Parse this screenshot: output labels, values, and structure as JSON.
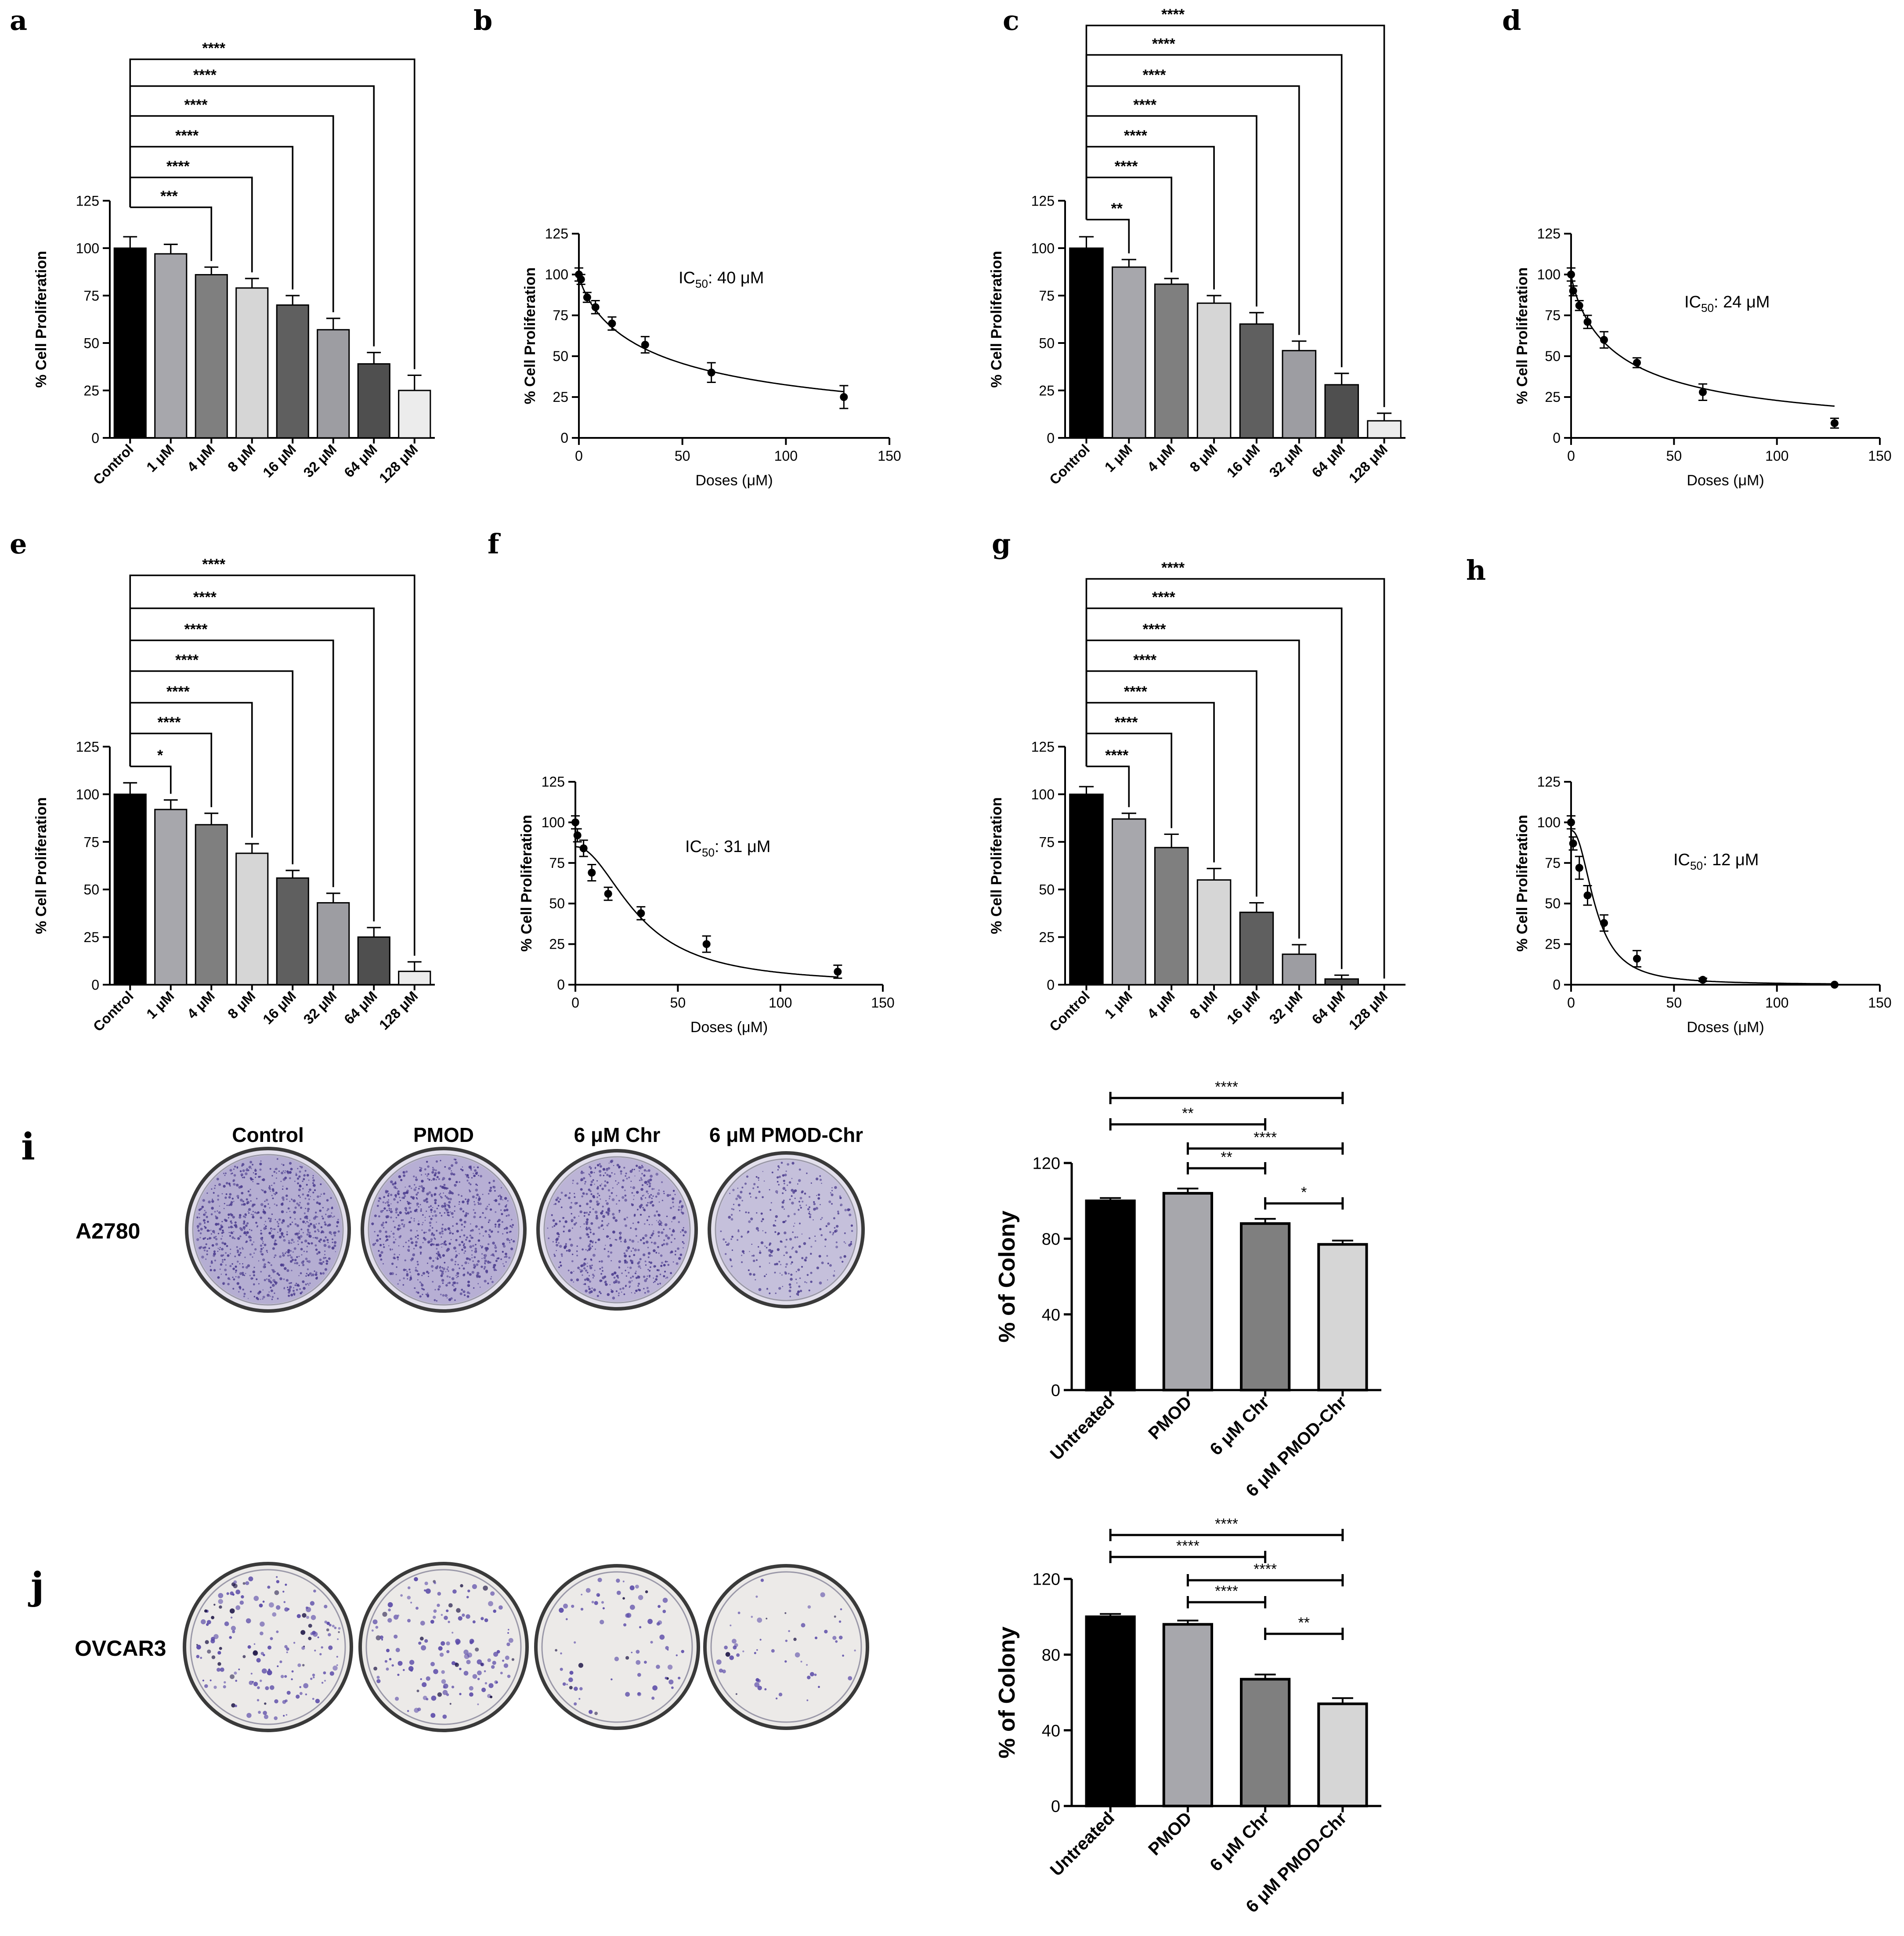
{
  "panel_labels": [
    "a",
    "b",
    "c",
    "d",
    "e",
    "f",
    "g",
    "h",
    "i",
    "j"
  ],
  "colors": {
    "control": "#000000",
    "bar_1": "#a7a7ac",
    "bar_4": "#7f7f7f",
    "bar_8": "#d6d6d6",
    "bar_16": "#5f5f5f",
    "bar_32": "#9d9da2",
    "bar_64": "#4f4f4f",
    "bar_128": "#ececec",
    "dish_stain": "#6a5aa8",
    "dish_rim": "#3a3a3a",
    "dish_fill": "#d9d6e4"
  },
  "chart_data": [
    {
      "panel": "a",
      "type": "bar",
      "ylabel": "% Cell Proliferation",
      "ylim": [
        0,
        125
      ],
      "yticks": [
        "0",
        "25",
        "50",
        "75",
        "100",
        "125"
      ],
      "categories": [
        "Control",
        "1 μM",
        "4 μM",
        "8 μM",
        "16 μM",
        "32 μM",
        "64 μM",
        "128 μM"
      ],
      "values": [
        100,
        97,
        86,
        79,
        70,
        57,
        39,
        25
      ],
      "errors": [
        6,
        5,
        4,
        5,
        5,
        6,
        6,
        8
      ],
      "annotations": [
        {
          "from": 0,
          "to": 2,
          "label": "***"
        },
        {
          "from": 0,
          "to": 3,
          "label": "****"
        },
        {
          "from": 0,
          "to": 4,
          "label": "****"
        },
        {
          "from": 0,
          "to": 5,
          "label": "****"
        },
        {
          "from": 0,
          "to": 6,
          "label": "****"
        },
        {
          "from": 0,
          "to": 7,
          "label": "****"
        }
      ]
    },
    {
      "panel": "b",
      "type": "scatter",
      "xlabel": "Doses (μM)",
      "ylabel": "% Cell Proliferation",
      "xlim": [
        0,
        150
      ],
      "ylim": [
        0,
        125
      ],
      "xticks": [
        "0",
        "50",
        "100",
        "150"
      ],
      "yticks": [
        "0",
        "25",
        "50",
        "75",
        "100",
        "125"
      ],
      "x": [
        0,
        1,
        4,
        8,
        16,
        32,
        64,
        128
      ],
      "y": [
        100,
        97,
        86,
        80,
        70,
        57,
        40,
        25
      ],
      "errors": [
        4,
        3,
        3,
        4,
        4,
        5,
        6,
        7
      ],
      "ic50_label": "IC",
      "ic50_sub": "50",
      "ic50_value": ": 40 μM",
      "fit": {
        "model": "hill",
        "ic50": 40,
        "hill": 0.8,
        "top": 100,
        "bottom": 0
      }
    },
    {
      "panel": "c",
      "type": "bar",
      "ylabel": "% Cell Proliferation",
      "ylim": [
        0,
        125
      ],
      "yticks": [
        "0",
        "25",
        "50",
        "75",
        "100",
        "125"
      ],
      "categories": [
        "Control",
        "1 μM",
        "4 μM",
        "8 μM",
        "16 μM",
        "32 μM",
        "64 μM",
        "128 μM"
      ],
      "values": [
        100,
        90,
        81,
        71,
        60,
        46,
        28,
        9
      ],
      "errors": [
        6,
        4,
        3,
        4,
        6,
        5,
        6,
        4
      ],
      "annotations": [
        {
          "from": 0,
          "to": 1,
          "label": "**"
        },
        {
          "from": 0,
          "to": 2,
          "label": "****"
        },
        {
          "from": 0,
          "to": 3,
          "label": "****"
        },
        {
          "from": 0,
          "to": 4,
          "label": "****"
        },
        {
          "from": 0,
          "to": 5,
          "label": "****"
        },
        {
          "from": 0,
          "to": 6,
          "label": "****"
        },
        {
          "from": 0,
          "to": 7,
          "label": "****"
        }
      ]
    },
    {
      "panel": "d",
      "type": "scatter",
      "xlabel": "Doses (μM)",
      "ylabel": "% Cell Proliferation",
      "xlim": [
        0,
        150
      ],
      "ylim": [
        0,
        125
      ],
      "xticks": [
        "0",
        "50",
        "100",
        "150"
      ],
      "yticks": [
        "0",
        "25",
        "50",
        "75",
        "100",
        "125"
      ],
      "x": [
        0,
        1,
        4,
        8,
        16,
        32,
        64,
        128
      ],
      "y": [
        100,
        90,
        81,
        71,
        60,
        46,
        28,
        9
      ],
      "errors": [
        4,
        3,
        3,
        4,
        5,
        3,
        5,
        3
      ],
      "ic50_label": "IC",
      "ic50_sub": "50",
      "ic50_value": ": 24 μM",
      "fit": {
        "model": "hill",
        "ic50": 24,
        "hill": 0.85,
        "top": 100,
        "bottom": 0
      }
    },
    {
      "panel": "e",
      "type": "bar",
      "ylabel": "% Cell Proliferation",
      "ylim": [
        0,
        125
      ],
      "yticks": [
        "0",
        "25",
        "50",
        "75",
        "100",
        "125"
      ],
      "categories": [
        "Control",
        "1 μM",
        "4 μM",
        "8 μM",
        "16 μM",
        "32 μM",
        "64 μM",
        "128 μM"
      ],
      "values": [
        100,
        92,
        84,
        69,
        56,
        43,
        25,
        7
      ],
      "errors": [
        6,
        5,
        6,
        5,
        4,
        5,
        5,
        5
      ],
      "annotations": [
        {
          "from": 0,
          "to": 1,
          "label": "*"
        },
        {
          "from": 0,
          "to": 2,
          "label": "****"
        },
        {
          "from": 0,
          "to": 3,
          "label": "****"
        },
        {
          "from": 0,
          "to": 4,
          "label": "****"
        },
        {
          "from": 0,
          "to": 5,
          "label": "****"
        },
        {
          "from": 0,
          "to": 6,
          "label": "****"
        },
        {
          "from": 0,
          "to": 7,
          "label": "****"
        }
      ]
    },
    {
      "panel": "f",
      "type": "scatter",
      "xlabel": "Doses (μM)",
      "ylabel": "% Cell Proliferation",
      "xlim": [
        0,
        150
      ],
      "ylim": [
        0,
        125
      ],
      "xticks": [
        "0",
        "50",
        "100",
        "150"
      ],
      "yticks": [
        "0",
        "25",
        "50",
        "75",
        "100",
        "125"
      ],
      "x": [
        0,
        1,
        4,
        8,
        16,
        32,
        64,
        128
      ],
      "y": [
        100,
        92,
        84,
        69,
        56,
        44,
        25,
        8
      ],
      "errors": [
        4,
        4,
        5,
        5,
        4,
        4,
        5,
        4
      ],
      "ic50_label": "IC",
      "ic50_sub": "50",
      "ic50_value": ": 31 μM",
      "fit": {
        "model": "hill",
        "ic50": 31,
        "hill": 2.0,
        "top": 85,
        "bottom": 0
      }
    },
    {
      "panel": "g",
      "type": "bar",
      "ylabel": "% Cell Proliferation",
      "ylim": [
        0,
        125
      ],
      "yticks": [
        "0",
        "25",
        "50",
        "75",
        "100",
        "125"
      ],
      "categories": [
        "Control",
        "1 μM",
        "4 μM",
        "8 μM",
        "16 μM",
        "32 μM",
        "64 μM",
        "128 μM"
      ],
      "values": [
        100,
        87,
        72,
        55,
        38,
        16,
        3,
        0
      ],
      "errors": [
        4,
        3,
        7,
        6,
        5,
        5,
        2,
        0
      ],
      "annotations": [
        {
          "from": 0,
          "to": 1,
          "label": "****"
        },
        {
          "from": 0,
          "to": 2,
          "label": "****"
        },
        {
          "from": 0,
          "to": 3,
          "label": "****"
        },
        {
          "from": 0,
          "to": 4,
          "label": "****"
        },
        {
          "from": 0,
          "to": 5,
          "label": "****"
        },
        {
          "from": 0,
          "to": 6,
          "label": "****"
        },
        {
          "from": 0,
          "to": 7,
          "label": "****"
        }
      ]
    },
    {
      "panel": "h",
      "type": "scatter",
      "xlabel": "Doses (μM)",
      "ylabel": "% Cell Proliferation",
      "xlim": [
        0,
        150
      ],
      "ylim": [
        0,
        125
      ],
      "xticks": [
        "0",
        "50",
        "100",
        "150"
      ],
      "yticks": [
        "0",
        "25",
        "50",
        "75",
        "100",
        "125"
      ],
      "x": [
        0,
        1,
        4,
        8,
        16,
        32,
        64,
        128
      ],
      "y": [
        100,
        87,
        72,
        55,
        38,
        16,
        3,
        0
      ],
      "errors": [
        4,
        4,
        7,
        6,
        5,
        5,
        1,
        0
      ],
      "ic50_label": "IC",
      "ic50_sub": "50",
      "ic50_value": ": 12 μM",
      "fit": {
        "model": "hill",
        "ic50": 12,
        "hill": 2.2,
        "top": 95,
        "bottom": 0
      }
    },
    {
      "panel": "i",
      "type": "bar",
      "ylabel": "% of Colony",
      "ylim": [
        0,
        120
      ],
      "yticks": [
        "0",
        "40",
        "80",
        "120"
      ],
      "categories": [
        "Untreated",
        "PMOD",
        "6 μM Chr",
        "6 μM PMOD-Chr"
      ],
      "values": [
        100,
        104,
        88,
        77
      ],
      "errors": [
        1.5,
        2.5,
        2.5,
        2
      ],
      "annotations": [
        {
          "from": 0,
          "to": 3,
          "label": "****"
        },
        {
          "from": 0,
          "to": 2,
          "label": "**"
        },
        {
          "from": 1,
          "to": 3,
          "label": "****"
        },
        {
          "from": 1,
          "to": 2,
          "label": "**"
        },
        {
          "from": 2,
          "to": 3,
          "label": "*"
        }
      ]
    },
    {
      "panel": "j",
      "type": "bar",
      "ylabel": "% of Colony",
      "ylim": [
        0,
        120
      ],
      "yticks": [
        "0",
        "40",
        "80",
        "120"
      ],
      "categories": [
        "Untreated",
        "PMOD",
        "6 μM Chr",
        "6 μM PMOD-Chr"
      ],
      "values": [
        100,
        96,
        67,
        54
      ],
      "errors": [
        1.5,
        2,
        2.5,
        3
      ],
      "annotations": [
        {
          "from": 0,
          "to": 3,
          "label": "****"
        },
        {
          "from": 0,
          "to": 2,
          "label": "****"
        },
        {
          "from": 1,
          "to": 3,
          "label": "****"
        },
        {
          "from": 1,
          "to": 2,
          "label": "****"
        },
        {
          "from": 2,
          "to": 3,
          "label": "**"
        }
      ]
    }
  ],
  "colony": {
    "headers": [
      "Control",
      "PMOD",
      "6 μM Chr",
      "6 μM PMOD-Chr"
    ],
    "rows": [
      {
        "cell_line": "A2780",
        "panel": "i",
        "density": [
          0.9,
          0.85,
          0.7,
          0.35
        ]
      },
      {
        "cell_line": "OVCAR3",
        "panel": "j",
        "density": [
          0.45,
          0.4,
          0.2,
          0.15
        ]
      }
    ]
  }
}
